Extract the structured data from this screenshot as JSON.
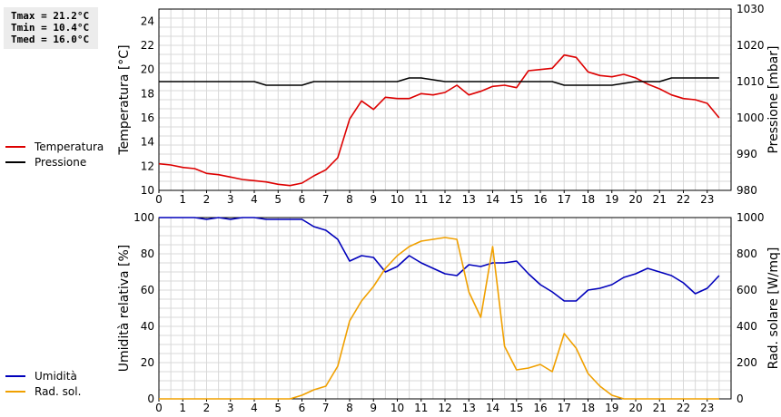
{
  "stats": {
    "tmax": "Tmax = 21.2°C",
    "tmin": "Tmin = 10.4°C",
    "tmed": "Tmed = 16.0°C"
  },
  "legend": {
    "top": [
      {
        "label": "Temperatura",
        "color": "#dd0000"
      },
      {
        "label": "Pressione",
        "color": "#000000"
      }
    ],
    "bottom": [
      {
        "label": "Umidità",
        "color": "#0000bb"
      },
      {
        "label": "Rad. sol.",
        "color": "#f0a000"
      }
    ]
  },
  "chart_data": [
    {
      "type": "line",
      "xlim": [
        0,
        24
      ],
      "xticks": [
        "0",
        "1",
        "2",
        "3",
        "4",
        "5",
        "6",
        "7",
        "8",
        "9",
        "10",
        "11",
        "12",
        "13",
        "14",
        "15",
        "16",
        "17",
        "18",
        "19",
        "20",
        "21",
        "22",
        "23"
      ],
      "grid": true,
      "ylabel_left": "Temperatura [°C]",
      "ylim_left": [
        10,
        25
      ],
      "yticks_left": [
        "10",
        "12",
        "14",
        "16",
        "18",
        "20",
        "22",
        "24"
      ],
      "ylabel_right": "Pressione [mbar]",
      "ylim_right": [
        980,
        1030
      ],
      "yticks_right": [
        "980",
        "990",
        "1000",
        "1010",
        "1020",
        "1030"
      ],
      "series": [
        {
          "name": "Temperatura",
          "axis": "left",
          "color": "#dd0000",
          "x": [
            0,
            0.5,
            1,
            1.5,
            2,
            2.5,
            3,
            3.5,
            4,
            4.5,
            5,
            5.5,
            6,
            6.5,
            7,
            7.5,
            8,
            8.5,
            9,
            9.5,
            10,
            10.5,
            11,
            11.5,
            12,
            12.5,
            13,
            13.5,
            14,
            14.5,
            15,
            15.5,
            16,
            16.5,
            17,
            17.5,
            18,
            18.5,
            19,
            19.5,
            20,
            20.5,
            21,
            21.5,
            22,
            22.5,
            23,
            23.5
          ],
          "y": [
            12.2,
            12.1,
            11.9,
            11.8,
            11.4,
            11.3,
            11.1,
            10.9,
            10.8,
            10.7,
            10.5,
            10.4,
            10.6,
            11.2,
            11.7,
            12.7,
            15.9,
            17.4,
            16.7,
            17.7,
            17.6,
            17.6,
            18.0,
            17.9,
            18.1,
            18.7,
            17.9,
            18.2,
            18.6,
            18.7,
            18.5,
            19.9,
            20.0,
            20.1,
            21.2,
            21.0,
            19.8,
            19.5,
            19.4,
            19.6,
            19.3,
            18.8,
            18.4,
            17.9,
            17.6,
            17.5,
            17.2,
            16.0
          ]
        },
        {
          "name": "Pressione",
          "axis": "right",
          "color": "#000000",
          "x": [
            0,
            1,
            2,
            3,
            4,
            4.5,
            5,
            6,
            6.5,
            7,
            8,
            9,
            10,
            10.5,
            11,
            12,
            13,
            14,
            15,
            16,
            16.5,
            17,
            18,
            19,
            20,
            21,
            21.5,
            22,
            23,
            23.5
          ],
          "y": [
            1010,
            1010,
            1010,
            1010,
            1010,
            1009,
            1009,
            1009,
            1010,
            1010,
            1010,
            1010,
            1010,
            1011,
            1011,
            1010,
            1010,
            1010,
            1010,
            1010,
            1010,
            1009,
            1009,
            1009,
            1010,
            1010,
            1011,
            1011,
            1011,
            1011
          ]
        }
      ]
    },
    {
      "type": "line",
      "xlim": [
        0,
        24
      ],
      "xticks": [
        "0",
        "1",
        "2",
        "3",
        "4",
        "5",
        "6",
        "7",
        "8",
        "9",
        "10",
        "11",
        "12",
        "13",
        "14",
        "15",
        "16",
        "17",
        "18",
        "19",
        "20",
        "21",
        "22",
        "23"
      ],
      "grid": true,
      "ylabel_left": "Umidità relativa [%]",
      "ylim_left": [
        0,
        100
      ],
      "yticks_left": [
        "0",
        "20",
        "40",
        "60",
        "80",
        "100"
      ],
      "ylabel_right": "Rad. solare [W/mq]",
      "ylim_right": [
        0,
        1000
      ],
      "yticks_right": [
        "0",
        "200",
        "400",
        "600",
        "800",
        "1000"
      ],
      "series": [
        {
          "name": "Umidità",
          "axis": "left",
          "color": "#0000bb",
          "x": [
            0,
            0.5,
            1,
            1.5,
            2,
            2.5,
            3,
            3.5,
            4,
            4.5,
            5,
            5.5,
            6,
            6.5,
            7,
            7.5,
            8,
            8.5,
            9,
            9.5,
            10,
            10.5,
            11,
            11.5,
            12,
            12.5,
            13,
            13.5,
            14,
            14.5,
            15,
            15.5,
            16,
            16.5,
            17,
            17.5,
            18,
            18.5,
            19,
            19.5,
            20,
            20.5,
            21,
            21.5,
            22,
            22.5,
            23,
            23.5
          ],
          "y": [
            100,
            100,
            100,
            100,
            99,
            100,
            99,
            100,
            100,
            99,
            99,
            99,
            99,
            95,
            93,
            88,
            76,
            79,
            78,
            70,
            73,
            79,
            75,
            72,
            69,
            68,
            74,
            73,
            75,
            75,
            76,
            69,
            63,
            59,
            54,
            54,
            60,
            61,
            63,
            67,
            69,
            72,
            70,
            68,
            64,
            58,
            61,
            68
          ]
        },
        {
          "name": "Rad. sol.",
          "axis": "right",
          "color": "#f0a000",
          "x": [
            0,
            0.5,
            1,
            1.5,
            2,
            2.5,
            3,
            3.5,
            4,
            4.5,
            5,
            5.5,
            6,
            6.5,
            7,
            7.5,
            8,
            8.5,
            9,
            9.5,
            10,
            10.5,
            11,
            11.5,
            12,
            12.5,
            13,
            13.5,
            14,
            14.5,
            15,
            15.5,
            16,
            16.5,
            17,
            17.5,
            18,
            18.5,
            19,
            19.5,
            20,
            20.5,
            21,
            21.5,
            22,
            22.5,
            23,
            23.5
          ],
          "y": [
            0,
            0,
            0,
            0,
            0,
            0,
            0,
            0,
            0,
            0,
            0,
            0,
            20,
            50,
            70,
            180,
            430,
            540,
            620,
            720,
            790,
            840,
            870,
            880,
            890,
            880,
            590,
            450,
            840,
            290,
            160,
            170,
            190,
            150,
            360,
            280,
            140,
            70,
            20,
            0,
            0,
            0,
            0,
            0,
            0,
            0,
            0,
            0
          ]
        }
      ]
    }
  ]
}
